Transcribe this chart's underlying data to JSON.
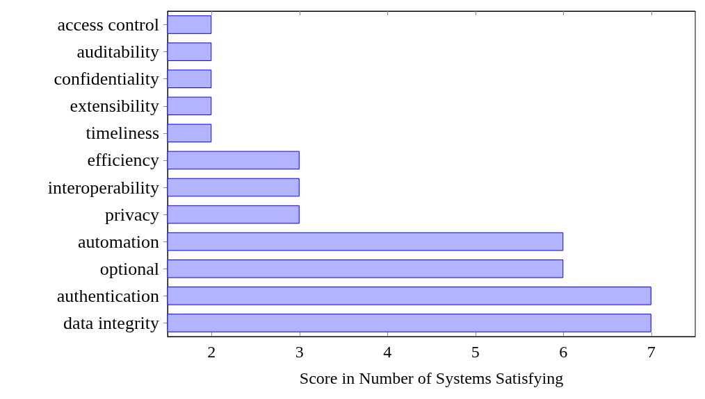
{
  "chart_data": {
    "type": "bar",
    "orientation": "horizontal",
    "xlabel": "Score in Number of Systems Satisfying",
    "categories": [
      "access control",
      "auditability",
      "confidentiality",
      "extensibility",
      "timeliness",
      "efficiency",
      "interoperability",
      "privacy",
      "automation",
      "optional",
      "authentication",
      "data integrity"
    ],
    "values": [
      2,
      2,
      2,
      2,
      2,
      3,
      3,
      3,
      6,
      6,
      7,
      7
    ],
    "color": "#b3b3ff",
    "xlim": [
      1.5,
      7.5
    ],
    "xticks": [
      2,
      3,
      4,
      5,
      6,
      7
    ],
    "grid": false
  }
}
